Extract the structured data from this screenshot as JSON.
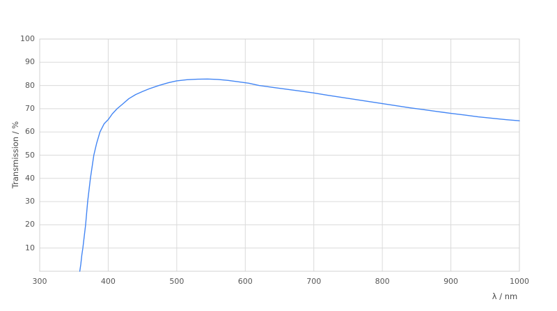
{
  "chart_data": {
    "type": "line",
    "title": "",
    "xlabel": "λ / nm",
    "ylabel": "Transmission / %",
    "xlim": [
      300,
      1000
    ],
    "ylim": [
      0,
      100
    ],
    "x_ticks": [
      300,
      400,
      500,
      600,
      700,
      800,
      900,
      1000
    ],
    "y_ticks": [
      10,
      20,
      30,
      40,
      50,
      60,
      70,
      80,
      90,
      100
    ],
    "grid": true,
    "legend": "none",
    "series": [
      {
        "name": "transmission",
        "color": "#4285f4",
        "points": [
          [
            358.5,
            0
          ],
          [
            360,
            3
          ],
          [
            361.5,
            7
          ],
          [
            363,
            10
          ],
          [
            365,
            15
          ],
          [
            367,
            20
          ],
          [
            368.5,
            25
          ],
          [
            370,
            30
          ],
          [
            372,
            35
          ],
          [
            374,
            40
          ],
          [
            376.5,
            45
          ],
          [
            379,
            50
          ],
          [
            383,
            55
          ],
          [
            388,
            60
          ],
          [
            394,
            63.5
          ],
          [
            400,
            65.3
          ],
          [
            406,
            67.8
          ],
          [
            413,
            70
          ],
          [
            421,
            72
          ],
          [
            430,
            74.3
          ],
          [
            440,
            76.1
          ],
          [
            450,
            77.4
          ],
          [
            460,
            78.6
          ],
          [
            474,
            80
          ],
          [
            488,
            81.2
          ],
          [
            500,
            82
          ],
          [
            515,
            82.5
          ],
          [
            530,
            82.7
          ],
          [
            545,
            82.8
          ],
          [
            560,
            82.6
          ],
          [
            575,
            82.2
          ],
          [
            590,
            81.6
          ],
          [
            605,
            81
          ],
          [
            620,
            80
          ],
          [
            640,
            79.2
          ],
          [
            660,
            78.4
          ],
          [
            680,
            77.6
          ],
          [
            700,
            76.8
          ],
          [
            720,
            75.8
          ],
          [
            740,
            74.9
          ],
          [
            760,
            74.0
          ],
          [
            780,
            73.1
          ],
          [
            800,
            72.2
          ],
          [
            820,
            71.3
          ],
          [
            840,
            70.4
          ],
          [
            860,
            69.6
          ],
          [
            880,
            68.8
          ],
          [
            900,
            68.0
          ],
          [
            920,
            67.3
          ],
          [
            940,
            66.5
          ],
          [
            960,
            65.9
          ],
          [
            980,
            65.3
          ],
          [
            1000,
            64.8
          ]
        ]
      }
    ]
  },
  "colors": {
    "background": "#ffffff",
    "gridline": "#dadada",
    "plot_border": "#d0d0d0",
    "tick_label": "#565656",
    "axis_title": "#4a4a4a",
    "line": "#4285f4"
  },
  "layout_values": {
    "line_width": 1.4
  }
}
